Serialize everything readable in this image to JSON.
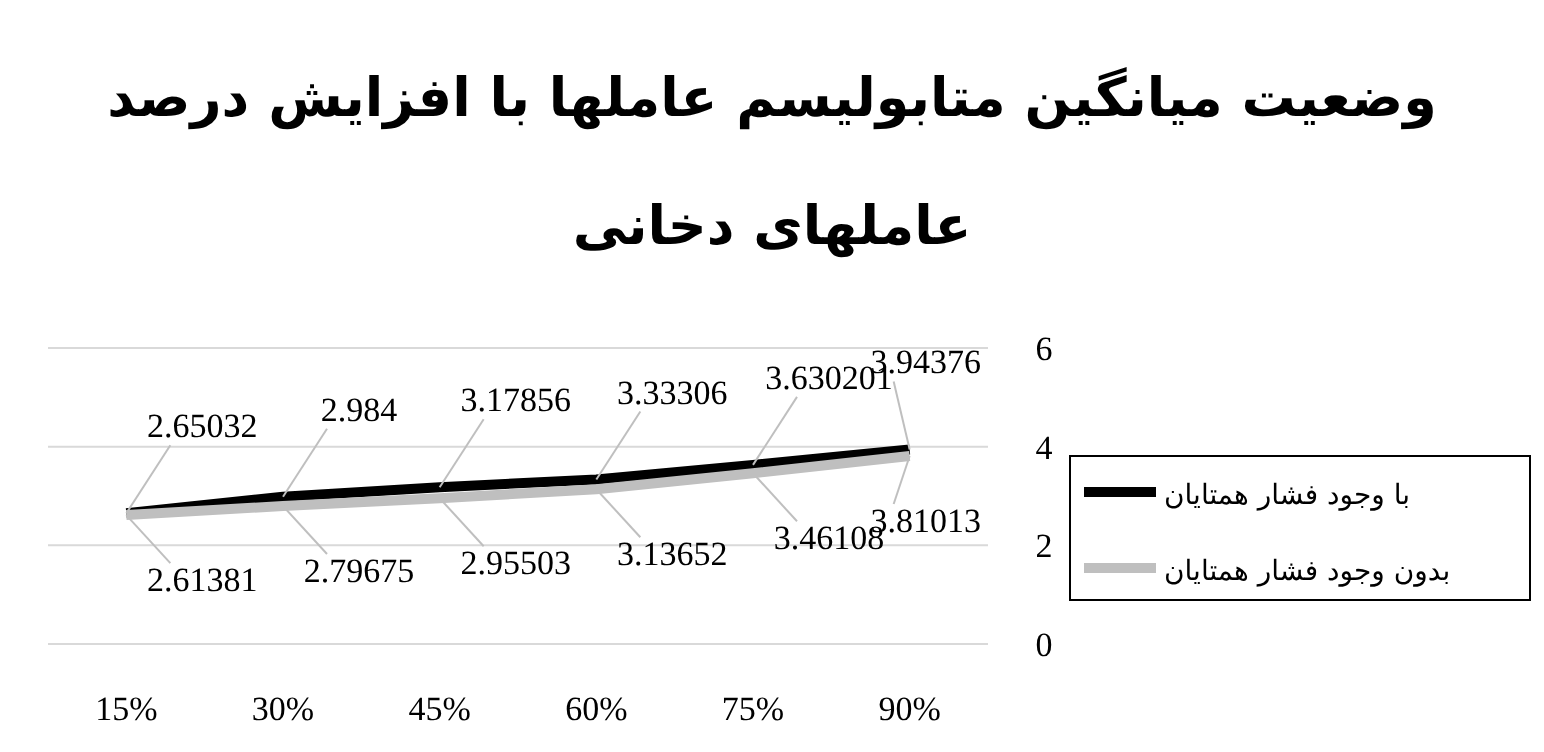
{
  "chart_data": {
    "type": "line",
    "title": "وضعیت میانگین متابولیسم عاملها با افزایش درصد عاملهای دخانی",
    "categories": [
      "15%",
      "30%",
      "45%",
      "60%",
      "75%",
      "90%"
    ],
    "series": [
      {
        "name": "با وجود فشار همتایان",
        "color": "#000000",
        "values": [
          2.65032,
          2.984,
          3.17856,
          3.33306,
          3.630201,
          3.94376
        ]
      },
      {
        "name": "بدون وجود فشار همتایان",
        "color": "#bfbfbf",
        "values": [
          2.61381,
          2.79675,
          2.95503,
          3.13652,
          3.46108,
          3.81013
        ]
      }
    ],
    "ylim": [
      0,
      6
    ],
    "yticks": [
      0,
      2,
      4,
      6
    ],
    "grid": "y",
    "legend": "right",
    "marker": "none",
    "line_style": "solid",
    "data_labels": true
  }
}
